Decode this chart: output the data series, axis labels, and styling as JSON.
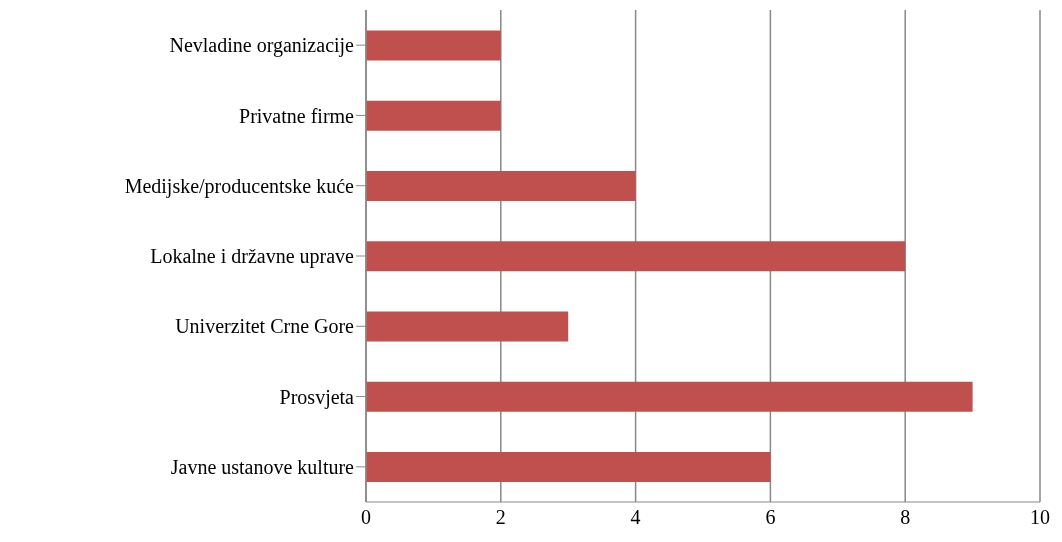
{
  "chart_data": {
    "type": "bar",
    "orientation": "horizontal",
    "categories": [
      "Nevladine organizacije",
      "Privatne firme",
      "Medijske/producentske kuće",
      "Lokalne i državne uprave",
      "Univerzitet Crne Gore",
      "Prosvjeta",
      "Javne ustanove kulture"
    ],
    "values": [
      2,
      2,
      4,
      8,
      3,
      9,
      6
    ],
    "color": "#c0504d",
    "xlim": [
      0,
      10
    ],
    "xticks": [
      0,
      2,
      4,
      6,
      8,
      10
    ],
    "grid": "x"
  }
}
